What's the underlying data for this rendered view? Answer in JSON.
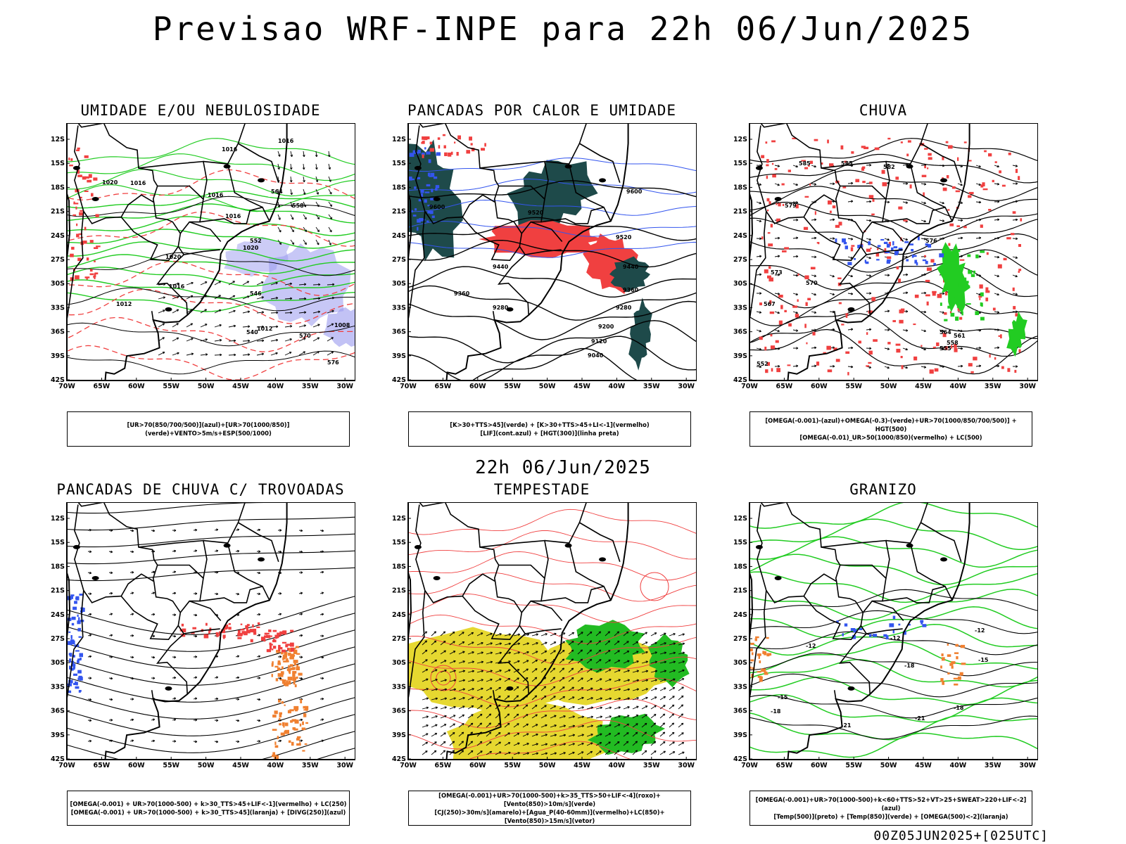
{
  "header": {
    "title": "Previsao WRF-INPE  para 22h 06/Jun/2025"
  },
  "middle": {
    "title": "22h 06/Jun/2025"
  },
  "footer": {
    "text": "00Z05JUN2025+[025UTC]"
  },
  "axes": {
    "lat_labels": [
      "12S",
      "15S",
      "18S",
      "21S",
      "24S",
      "27S",
      "30S",
      "33S",
      "36S",
      "39S",
      "42S"
    ],
    "lon_labels": [
      "70W",
      "65W",
      "60W",
      "55W",
      "50W",
      "45W",
      "40W",
      "35W",
      "30W"
    ]
  },
  "colors": {
    "red": "#f04040",
    "green": "#22cc22",
    "blue": "#3355ee",
    "lavender": "#9999ee",
    "teal": "#1e4a4a",
    "yellow": "#e6d830",
    "orange": "#f08030"
  },
  "panels": [
    {
      "title": "UMIDADE E/OU NEBULOSIDADE",
      "legend": [
        "[UR>70(850/700/500)](azul)+[UR>70(1000/850)](verde)+VENTO>5m/s+ESP(500/1000)"
      ],
      "contour_labels": [
        "1016",
        "1016",
        "1020",
        "1016",
        "1016",
        "1016",
        "1020",
        "1020",
        "1016",
        "1012",
        "1012",
        "1008",
        "570",
        "576",
        "564",
        "558",
        "552",
        "546",
        "540"
      ]
    },
    {
      "title": "PANCADAS POR CALOR E UMIDADE",
      "legend": [
        "[K>30+TTS>45](verde) + [K>30+TTS>45+LI<-1](vermelho)",
        "[LIF](cont.azul) + [HGT(300)](linha preta)"
      ],
      "contour_labels": [
        "9600",
        "9600",
        "9520",
        "9520",
        "9440",
        "9440",
        "9360",
        "9360",
        "9280",
        "9280",
        "9200",
        "9120",
        "9040"
      ]
    },
    {
      "title": "CHUVA",
      "legend": [
        "[OMEGA(-0.001)-(azul)+OMEGA(-0.3)-(verde)+UR>70(1000/850/700/500)] + HGT(500)",
        "[OMEGA(-0.01)_UR>50(1000/850)(vermelho) + LC(500)"
      ],
      "contour_labels": [
        "585",
        "585",
        "582",
        "579",
        "576",
        "573",
        "570",
        "567",
        "564",
        "561",
        "558",
        "555",
        "552"
      ]
    },
    {
      "title": "PANCADAS DE CHUVA C/ TROVOADAS",
      "legend": [
        "[OMEGA(-0.001) + UR>70(1000-500) + k>30_TTS>45+LIF<-1](vermelho) + LC(250)",
        "[OMEGA(-0.001) + UR>70(1000-500) + k>30_TTS>45](laranja) + [DIVG(250)](azul)"
      ]
    },
    {
      "title": "TEMPESTADE",
      "legend": [
        "[OMEGA(-0.001)+UR>70(1000-500)+k>35_TTS>50+LIF<-4](roxo)+[Vento(850)>10m/s](verde)",
        "[CJ(250)>30m/s](amarelo)+[Agua_P(40-60mm)](vermelho)+LC(850)+[Vento(850)>15m/s](vetor)"
      ]
    },
    {
      "title": "GRANIZO",
      "legend": [
        "[OMEGA(-0.001)+UR>70(1000-500)+k<60+TTS>52+VT>25+SWEAT>220+LIF<-2](azul)",
        "[Temp(500)](preto) + [Temp(850)](verde) + [OMEGA(500)<-2](laranja)"
      ],
      "contour_labels": [
        "-12",
        "-12",
        "-12",
        "-15",
        "-15",
        "-18",
        "-18",
        "-18",
        "-21",
        "-21"
      ]
    }
  ]
}
